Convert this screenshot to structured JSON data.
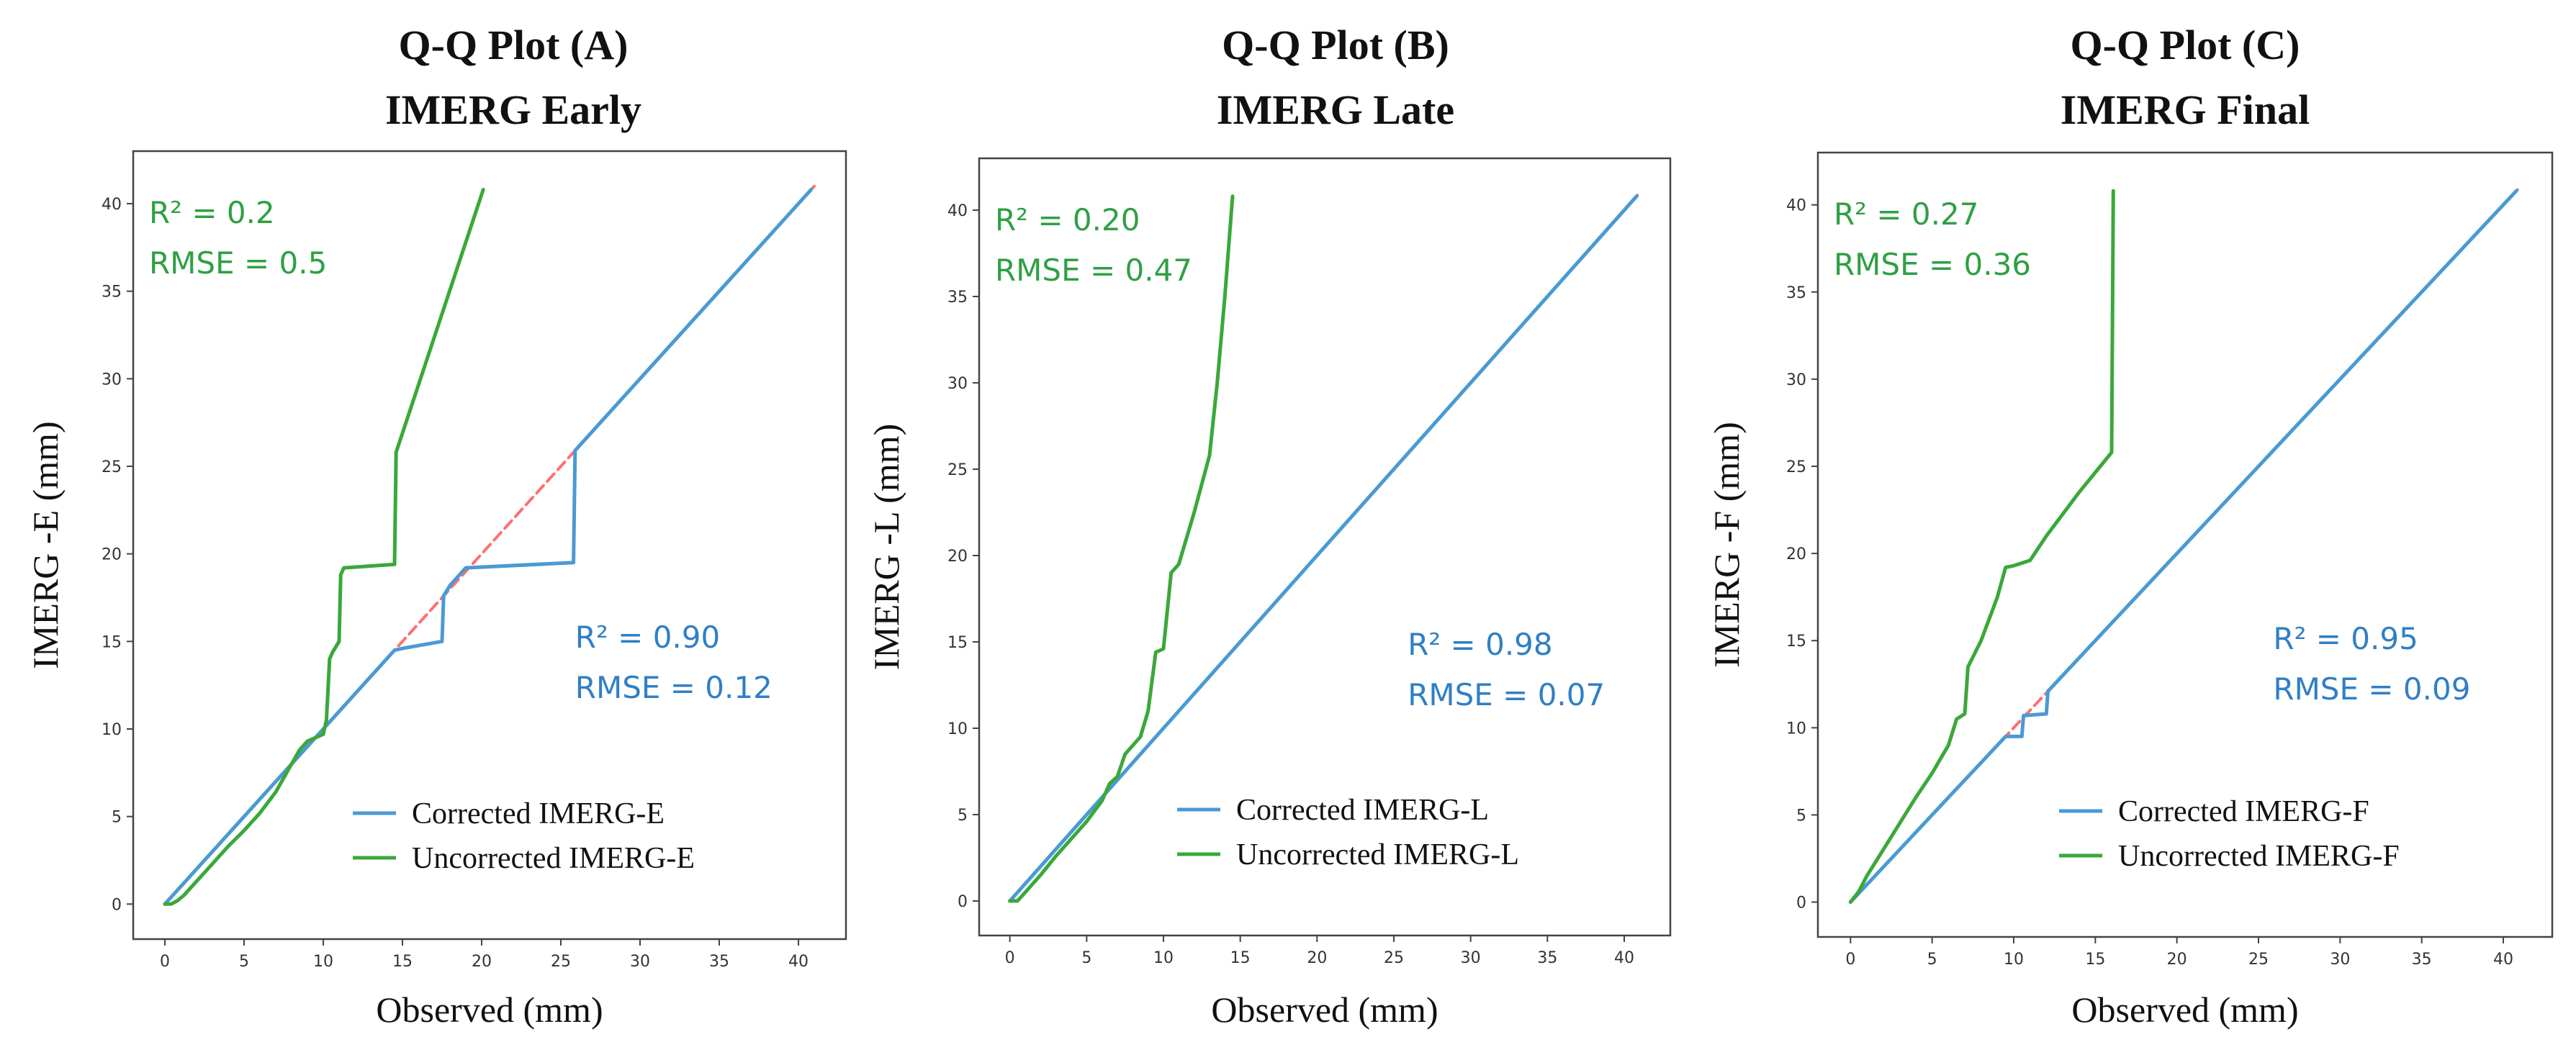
{
  "colors": {
    "corrected": "#4a9ad4",
    "uncorrected": "#3aa83a",
    "reference": "#ff6f6f",
    "corrected_text": "#2f7fc6",
    "uncorrected_text": "#2ea043"
  },
  "chart_data": [
    {
      "type": "line",
      "title": [
        "Q-Q Plot (A)",
        "IMERG Early"
      ],
      "xlabel": "Observed (mm)",
      "ylabel": "IMERG -E (mm)",
      "xlim": [
        -2,
        43
      ],
      "ylim": [
        -2,
        43
      ],
      "xticks": [
        0,
        5,
        10,
        15,
        20,
        25,
        30,
        35,
        40
      ],
      "yticks": [
        0,
        5,
        10,
        15,
        20,
        25,
        30,
        35,
        40
      ],
      "grid": false,
      "legend_position": "bottom-right",
      "uncorrected_stats": [
        "R² = 0.2",
        "RMSE = 0.5"
      ],
      "corrected_stats": [
        "R² = 0.90",
        "RMSE = 0.12"
      ],
      "series": [
        {
          "name": "Corrected IMERG-E",
          "role": "corrected",
          "x": [
            0,
            2,
            5,
            8,
            10,
            11,
            12,
            14.5,
            15,
            17.5,
            17.6,
            18,
            19,
            25.8,
            25.9,
            30,
            35,
            40.8
          ],
          "y": [
            0,
            2,
            5,
            8,
            10,
            11,
            12,
            14.5,
            14.6,
            15.0,
            17.6,
            18.2,
            19.2,
            19.5,
            25.9,
            30,
            35,
            40.8
          ]
        },
        {
          "name": "Uncorrected IMERG-E",
          "role": "uncorrected",
          "x": [
            0,
            0.4,
            0.8,
            1.2,
            2,
            3,
            4,
            5,
            6,
            7,
            7.5,
            8,
            8.5,
            9,
            9.5,
            10,
            10.2,
            10.4,
            10.6,
            11,
            11.1,
            11.3,
            14.5,
            14.6,
            20.1
          ],
          "y": [
            0,
            0,
            0.2,
            0.5,
            1.3,
            2.3,
            3.3,
            4.2,
            5.2,
            6.4,
            7.2,
            8.0,
            8.8,
            9.3,
            9.5,
            9.7,
            10.5,
            14.0,
            14.4,
            15.0,
            18.8,
            19.2,
            19.4,
            25.8,
            40.8
          ]
        },
        {
          "name": "1:1 line",
          "role": "reference",
          "x": [
            0,
            41
          ],
          "y": [
            0,
            41
          ]
        }
      ]
    },
    {
      "type": "line",
      "title": [
        "Q-Q Plot (B)",
        "IMERG Late"
      ],
      "xlabel": "Observed (mm)",
      "ylabel": "IMERG -L (mm)",
      "xlim": [
        -2,
        43
      ],
      "ylim": [
        -2,
        43
      ],
      "xticks": [
        0,
        5,
        10,
        15,
        20,
        25,
        30,
        35,
        40
      ],
      "yticks": [
        0,
        5,
        10,
        15,
        20,
        25,
        30,
        35,
        40
      ],
      "grid": false,
      "legend_position": "bottom-right",
      "uncorrected_stats": [
        "R² = 0.20",
        "RMSE = 0.47"
      ],
      "corrected_stats": [
        "R² = 0.98",
        "RMSE = 0.07"
      ],
      "series": [
        {
          "name": "Corrected IMERG-L",
          "role": "corrected",
          "x": [
            0,
            10,
            20,
            30,
            40.8
          ],
          "y": [
            0,
            10,
            20,
            30,
            40.8
          ]
        },
        {
          "name": "Uncorrected IMERG-L",
          "role": "uncorrected",
          "x": [
            0,
            0.5,
            1,
            2,
            3,
            4,
            5,
            6,
            6.5,
            7,
            7.5,
            8,
            8.5,
            9,
            9.5,
            10,
            10.5,
            11,
            12,
            13,
            13.5,
            14,
            14.5
          ],
          "y": [
            0,
            0,
            0.5,
            1.5,
            2.6,
            3.6,
            4.6,
            5.8,
            6.8,
            7.2,
            8.5,
            9.0,
            9.5,
            11.0,
            14.4,
            14.6,
            19.0,
            19.5,
            22.5,
            25.8,
            30.0,
            35.0,
            40.8
          ]
        },
        {
          "name": "1:1 line",
          "role": "reference",
          "x": [
            0,
            41
          ],
          "y": [
            0,
            41
          ]
        }
      ]
    },
    {
      "type": "line",
      "title": [
        "Q-Q Plot (C)",
        "IMERG Final"
      ],
      "xlabel": "Observed (mm)",
      "ylabel": "IMERG -F (mm)",
      "xlim": [
        -2,
        43
      ],
      "ylim": [
        -2,
        43
      ],
      "xticks": [
        0,
        5,
        10,
        15,
        20,
        25,
        30,
        35,
        40
      ],
      "yticks": [
        0,
        5,
        10,
        15,
        20,
        25,
        30,
        35,
        40
      ],
      "grid": false,
      "legend_position": "bottom-right",
      "uncorrected_stats": [
        "R² = 0.27",
        "RMSE = 0.36"
      ],
      "corrected_stats": [
        "R² = 0.95",
        "RMSE = 0.09"
      ],
      "series": [
        {
          "name": "Corrected IMERG-F",
          "role": "corrected",
          "x": [
            0,
            3,
            6,
            7.5,
            8,
            9.5,
            10,
            10.5,
            10.6,
            12,
            12.1,
            15,
            20,
            30,
            40.8
          ],
          "y": [
            0,
            3,
            6,
            7.5,
            8,
            9.5,
            9.5,
            9.5,
            10.7,
            10.8,
            12.1,
            15,
            20,
            30,
            40.8
          ]
        },
        {
          "name": "Uncorrected IMERG-F",
          "role": "uncorrected",
          "x": [
            0,
            0.5,
            1,
            2,
            3,
            4,
            5,
            6,
            6.5,
            7,
            7.2,
            8,
            9,
            9.5,
            10,
            11,
            12,
            14,
            16,
            16.1
          ],
          "y": [
            0,
            0.6,
            1.5,
            3.0,
            4.5,
            6.0,
            7.4,
            9.0,
            10.5,
            10.8,
            13.5,
            15.0,
            17.5,
            19.2,
            19.3,
            19.6,
            21.0,
            23.5,
            25.8,
            40.8
          ]
        },
        {
          "name": "1:1 line",
          "role": "reference",
          "x": [
            0,
            41
          ],
          "y": [
            0,
            41
          ]
        }
      ]
    }
  ]
}
